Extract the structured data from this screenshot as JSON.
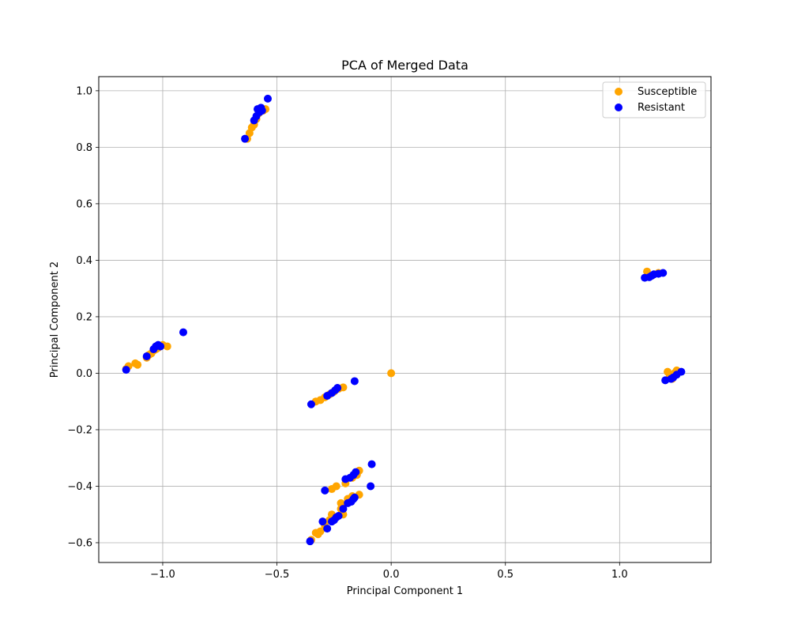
{
  "chart_data": {
    "type": "scatter",
    "title": "PCA of Merged Data",
    "xlabel": "Principal Component 1",
    "ylabel": "Principal Component 2",
    "xlim": [
      -1.28,
      1.4
    ],
    "ylim": [
      -0.67,
      1.05
    ],
    "xticks": [
      -1.0,
      -0.5,
      0.0,
      0.5,
      1.0
    ],
    "xtick_labels": [
      "−1.0",
      "−0.5",
      "0.0",
      "0.5",
      "1.0"
    ],
    "yticks": [
      -0.6,
      -0.4,
      -0.2,
      0.0,
      0.2,
      0.4,
      0.6,
      0.8,
      1.0
    ],
    "ytick_labels": [
      "−0.6",
      "−0.4",
      "−0.2",
      "0.0",
      "0.2",
      "0.4",
      "0.6",
      "0.8",
      "1.0"
    ],
    "grid": true,
    "legend_position": "top-right",
    "series": [
      {
        "name": "Susceptible",
        "color": "#FFA500",
        "points": [
          [
            -1.16,
            0.015
          ],
          [
            -1.15,
            0.025
          ],
          [
            -1.12,
            0.035
          ],
          [
            -1.11,
            0.03
          ],
          [
            -1.07,
            0.055
          ],
          [
            -1.06,
            0.065
          ],
          [
            -1.05,
            0.07
          ],
          [
            -1.04,
            0.08
          ],
          [
            -1.03,
            0.085
          ],
          [
            -1.02,
            0.09
          ],
          [
            -0.98,
            0.095
          ],
          [
            -1.0,
            0.1
          ],
          [
            -0.63,
            0.83
          ],
          [
            -0.62,
            0.85
          ],
          [
            -0.61,
            0.87
          ],
          [
            -0.6,
            0.88
          ],
          [
            -0.59,
            0.9
          ],
          [
            -0.58,
            0.92
          ],
          [
            -0.56,
            0.93
          ],
          [
            -0.55,
            0.935
          ],
          [
            -0.33,
            -0.1
          ],
          [
            -0.31,
            -0.095
          ],
          [
            -0.29,
            -0.085
          ],
          [
            -0.27,
            -0.075
          ],
          [
            -0.25,
            -0.065
          ],
          [
            -0.23,
            -0.055
          ],
          [
            -0.21,
            -0.05
          ],
          [
            -0.35,
            -0.59
          ],
          [
            -0.33,
            -0.565
          ],
          [
            -0.32,
            -0.57
          ],
          [
            -0.31,
            -0.56
          ],
          [
            -0.29,
            -0.54
          ],
          [
            -0.27,
            -0.52
          ],
          [
            -0.26,
            -0.5
          ],
          [
            -0.24,
            -0.51
          ],
          [
            -0.22,
            -0.48
          ],
          [
            -0.21,
            -0.5
          ],
          [
            -0.22,
            -0.46
          ],
          [
            -0.19,
            -0.445
          ],
          [
            -0.17,
            -0.435
          ],
          [
            -0.14,
            -0.43
          ],
          [
            -0.26,
            -0.41
          ],
          [
            -0.24,
            -0.4
          ],
          [
            -0.2,
            -0.39
          ],
          [
            -0.17,
            -0.37
          ],
          [
            -0.15,
            -0.36
          ],
          [
            -0.14,
            -0.345
          ],
          [
            0.0,
            0.0
          ],
          [
            1.12,
            0.36
          ],
          [
            1.14,
            0.345
          ],
          [
            1.15,
            0.35
          ],
          [
            1.17,
            0.355
          ],
          [
            1.21,
            0.005
          ],
          [
            1.22,
            -0.01
          ],
          [
            1.24,
            0.0
          ],
          [
            1.25,
            0.01
          ],
          [
            1.23,
            -0.02
          ]
        ]
      },
      {
        "name": "Resistant",
        "color": "#0000FF",
        "points": [
          [
            -1.16,
            0.012
          ],
          [
            -1.07,
            0.06
          ],
          [
            -1.04,
            0.085
          ],
          [
            -1.03,
            0.095
          ],
          [
            -1.02,
            0.1
          ],
          [
            -1.01,
            0.095
          ],
          [
            -0.91,
            0.145
          ],
          [
            -0.64,
            0.83
          ],
          [
            -0.6,
            0.895
          ],
          [
            -0.59,
            0.91
          ],
          [
            -0.585,
            0.935
          ],
          [
            -0.575,
            0.925
          ],
          [
            -0.57,
            0.94
          ],
          [
            -0.565,
            0.93
          ],
          [
            -0.54,
            0.972
          ],
          [
            -0.35,
            -0.11
          ],
          [
            -0.28,
            -0.08
          ],
          [
            -0.26,
            -0.07
          ],
          [
            -0.245,
            -0.06
          ],
          [
            -0.235,
            -0.052
          ],
          [
            -0.16,
            -0.028
          ],
          [
            -0.355,
            -0.595
          ],
          [
            -0.3,
            -0.525
          ],
          [
            -0.28,
            -0.55
          ],
          [
            -0.26,
            -0.525
          ],
          [
            -0.25,
            -0.52
          ],
          [
            -0.24,
            -0.51
          ],
          [
            -0.23,
            -0.505
          ],
          [
            -0.21,
            -0.48
          ],
          [
            -0.19,
            -0.46
          ],
          [
            -0.175,
            -0.455
          ],
          [
            -0.165,
            -0.445
          ],
          [
            -0.16,
            -0.44
          ],
          [
            -0.09,
            -0.4
          ],
          [
            -0.29,
            -0.415
          ],
          [
            -0.2,
            -0.375
          ],
          [
            -0.18,
            -0.37
          ],
          [
            -0.165,
            -0.36
          ],
          [
            -0.155,
            -0.35
          ],
          [
            -0.085,
            -0.322
          ],
          [
            1.11,
            0.338
          ],
          [
            1.13,
            0.34
          ],
          [
            1.14,
            0.345
          ],
          [
            1.15,
            0.35
          ],
          [
            1.17,
            0.352
          ],
          [
            1.19,
            0.355
          ],
          [
            1.2,
            -0.025
          ],
          [
            1.225,
            -0.02
          ],
          [
            1.235,
            -0.015
          ],
          [
            1.25,
            -0.005
          ],
          [
            1.27,
            0.005
          ]
        ]
      }
    ]
  }
}
